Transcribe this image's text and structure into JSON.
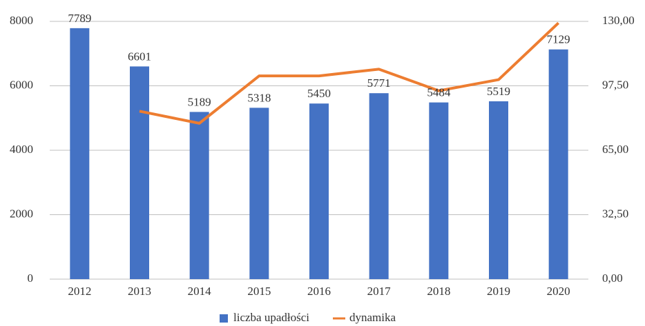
{
  "chart_data": {
    "type": "bar",
    "categories": [
      "2012",
      "2013",
      "2014",
      "2015",
      "2016",
      "2017",
      "2018",
      "2019",
      "2020"
    ],
    "series": [
      {
        "name": "liczba upadłości",
        "type": "bar",
        "color": "#4472c4",
        "values": [
          7789,
          6601,
          5189,
          5318,
          5450,
          5771,
          5484,
          5519,
          7129
        ]
      },
      {
        "name": "dynamika",
        "type": "line",
        "axis": "y2",
        "color": "#ed7d31",
        "values": [
          null,
          84.7,
          78.6,
          102.5,
          102.5,
          105.9,
          95.0,
          100.6,
          129.2
        ]
      }
    ],
    "ylim": [
      0,
      8000
    ],
    "yticks": [
      0,
      2000,
      4000,
      6000,
      8000
    ],
    "y2lim": [
      0,
      130
    ],
    "y2ticks": [
      {
        "value": 0,
        "label": "0,00"
      },
      {
        "value": 32.5,
        "label": "32,50"
      },
      {
        "value": 65,
        "label": "65,00"
      },
      {
        "value": 97.5,
        "label": "97,50"
      },
      {
        "value": 130,
        "label": "130,00"
      }
    ],
    "grid": true,
    "legend": "bottom"
  }
}
